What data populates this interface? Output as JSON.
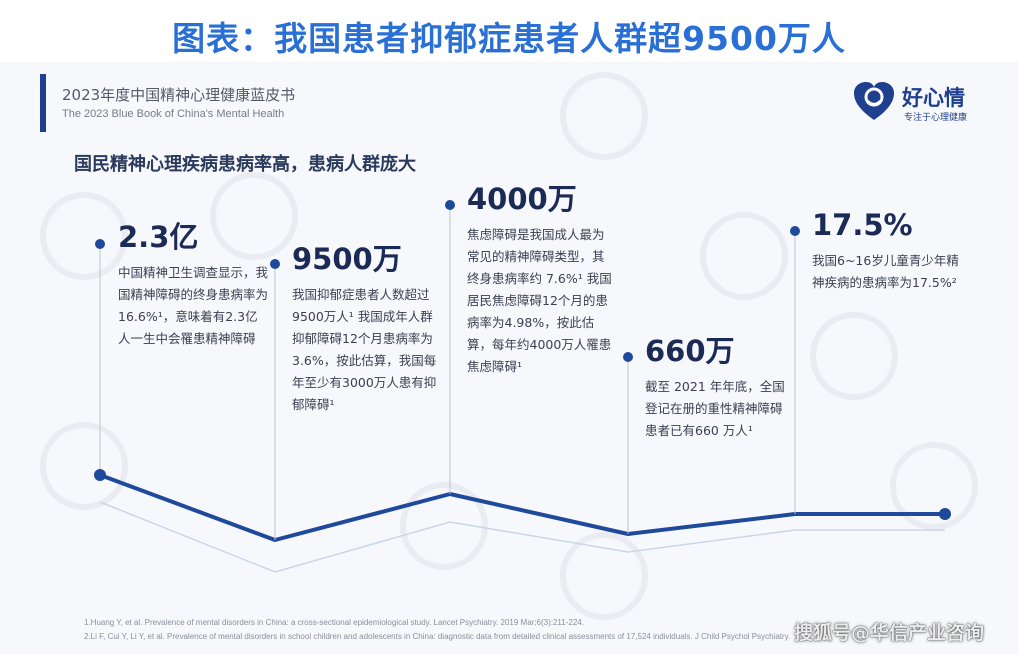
{
  "title": "图表：我国患者抑郁症患者人群超9500万人",
  "book": {
    "title": "2023年度中国精神心理健康蓝皮书",
    "subtitle": "The 2023 Blue Book of China's Mental Health"
  },
  "logo": {
    "name": "好心情",
    "tagline": "专注于心理健康"
  },
  "subtitle": "国民精神心理疾病患病率高，患病人群庞大",
  "stats": [
    {
      "value": "2.3亿",
      "desc": "中国精神卫生调查显示，我国精神障碍的终身患病率为16.6%¹，意味着有2.3亿人一生中会罹患精神障碍"
    },
    {
      "value": "9500万",
      "desc": "我国抑郁症患者人数超过9500万人¹ 我国成年人群抑郁障碍12个月患病率为3.6%，按此估算，我国每年至少有3000万人患有抑郁障碍¹"
    },
    {
      "value": "4000万",
      "desc": "焦虑障碍是我国成人最为常见的精神障碍类型，其终身患病率约 7.6%¹ 我国居民焦虑障碍12个月的患病率为4.98%，按此估算，每年约4000万人罹患焦虑障碍¹"
    },
    {
      "value": "660万",
      "desc": "截至 2021 年年底，全国登记在册的重性精神障碍患者已有660 万人¹"
    },
    {
      "value": "17.5%",
      "desc": "我国6~16岁儿童青少年精神疾病的患病率为17.5%²"
    }
  ],
  "footnotes": [
    "1.Huang Y, et al. Prevalence of mental disorders in China: a cross-sectional epidemiological study. Lancet Psychiatry. 2019 Mar;6(3):211-224.",
    "2.Li F, Cui Y, Li Y, et al. Prevalence of mental disorders in school children and adolescents in China: diagnostic data from detailed clinical assessments of 17,524 individuals. J Child Psychol Psychiatry."
  ],
  "source_watermark": "搜狐号@华信产业咨询",
  "colors": {
    "title": "#2a6fd6",
    "line": "#1f4a9c",
    "light_line": "#c8d6ea",
    "dark_text": "#1c2b55"
  }
}
